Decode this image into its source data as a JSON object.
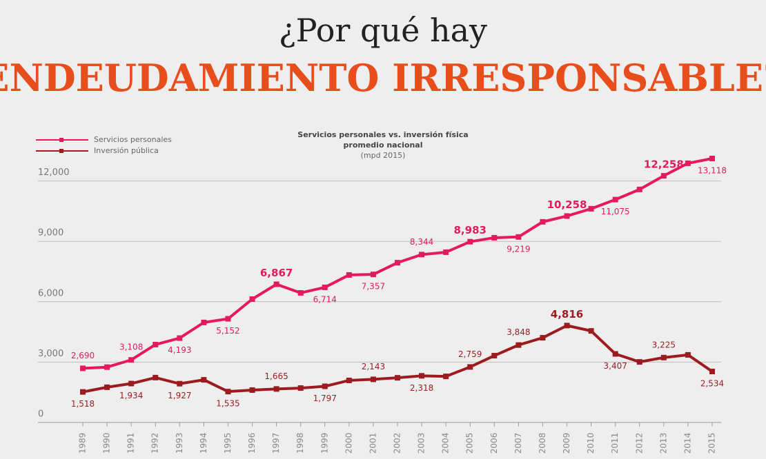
{
  "header": {
    "line1": "¿Por qué hay",
    "line2": "ENDEUDAMIENTO IRRESPONSABLE?"
  },
  "chart_data": {
    "type": "line",
    "title": "Servicios personales vs. inversión física",
    "subtitle": "promedio nacional",
    "unit_note": "(mpd 2015)",
    "categories": [
      "1989",
      "1990",
      "1991",
      "1992",
      "1993",
      "1994",
      "1995",
      "1996",
      "1997",
      "1998",
      "1999",
      "2000",
      "2001",
      "2002",
      "2003",
      "2004",
      "2005",
      "2006",
      "2007",
      "2008",
      "2009",
      "2010",
      "2011",
      "2012",
      "2013",
      "2014",
      "2015"
    ],
    "series": [
      {
        "name": "Servicios personales",
        "color": "#e5195e",
        "values": [
          2690,
          2750,
          3108,
          3870,
          4193,
          4970,
          5152,
          6130,
          6867,
          6440,
          6714,
          7330,
          7357,
          7940,
          8344,
          8460,
          8983,
          9180,
          9219,
          9970,
          10258,
          10620,
          11075,
          11580,
          12258,
          12880,
          13118
        ],
        "value_labels": [
          "2,690",
          null,
          "3,108",
          null,
          "4,193",
          null,
          "5,152",
          null,
          "6,867",
          null,
          "6,714",
          null,
          "7,357",
          null,
          "8,344",
          null,
          "8,983",
          null,
          "9,219",
          null,
          "10,258",
          null,
          "11,075",
          null,
          "12,258",
          null,
          "13,118"
        ]
      },
      {
        "name": "Inversión pública",
        "color": "#9b1b1e",
        "values": [
          1518,
          1750,
          1934,
          2230,
          1927,
          2120,
          1535,
          1610,
          1665,
          1710,
          1797,
          2090,
          2143,
          2220,
          2318,
          2290,
          2759,
          3320,
          3848,
          4210,
          4816,
          4550,
          3407,
          3010,
          3225,
          3360,
          2534
        ],
        "value_labels": [
          "1,518",
          null,
          "1,934",
          null,
          "1,927",
          null,
          "1,535",
          null,
          "1,665",
          null,
          "1,797",
          null,
          "2,143",
          null,
          "2,318",
          null,
          "2,759",
          null,
          "3,848",
          null,
          "4,816",
          null,
          "3,407",
          null,
          "3,225",
          null,
          "2,534"
        ]
      }
    ],
    "ylim": [
      0,
      14000
    ],
    "yticks": [
      0,
      {
        "value": 3000,
        "label": "3,000"
      },
      {
        "value": 6000,
        "label": "6,000"
      },
      {
        "value": 9000,
        "label": "9,000"
      },
      {
        "value": 12000,
        "label": "12,000"
      }
    ],
    "grid": true,
    "legend": "top-left"
  }
}
